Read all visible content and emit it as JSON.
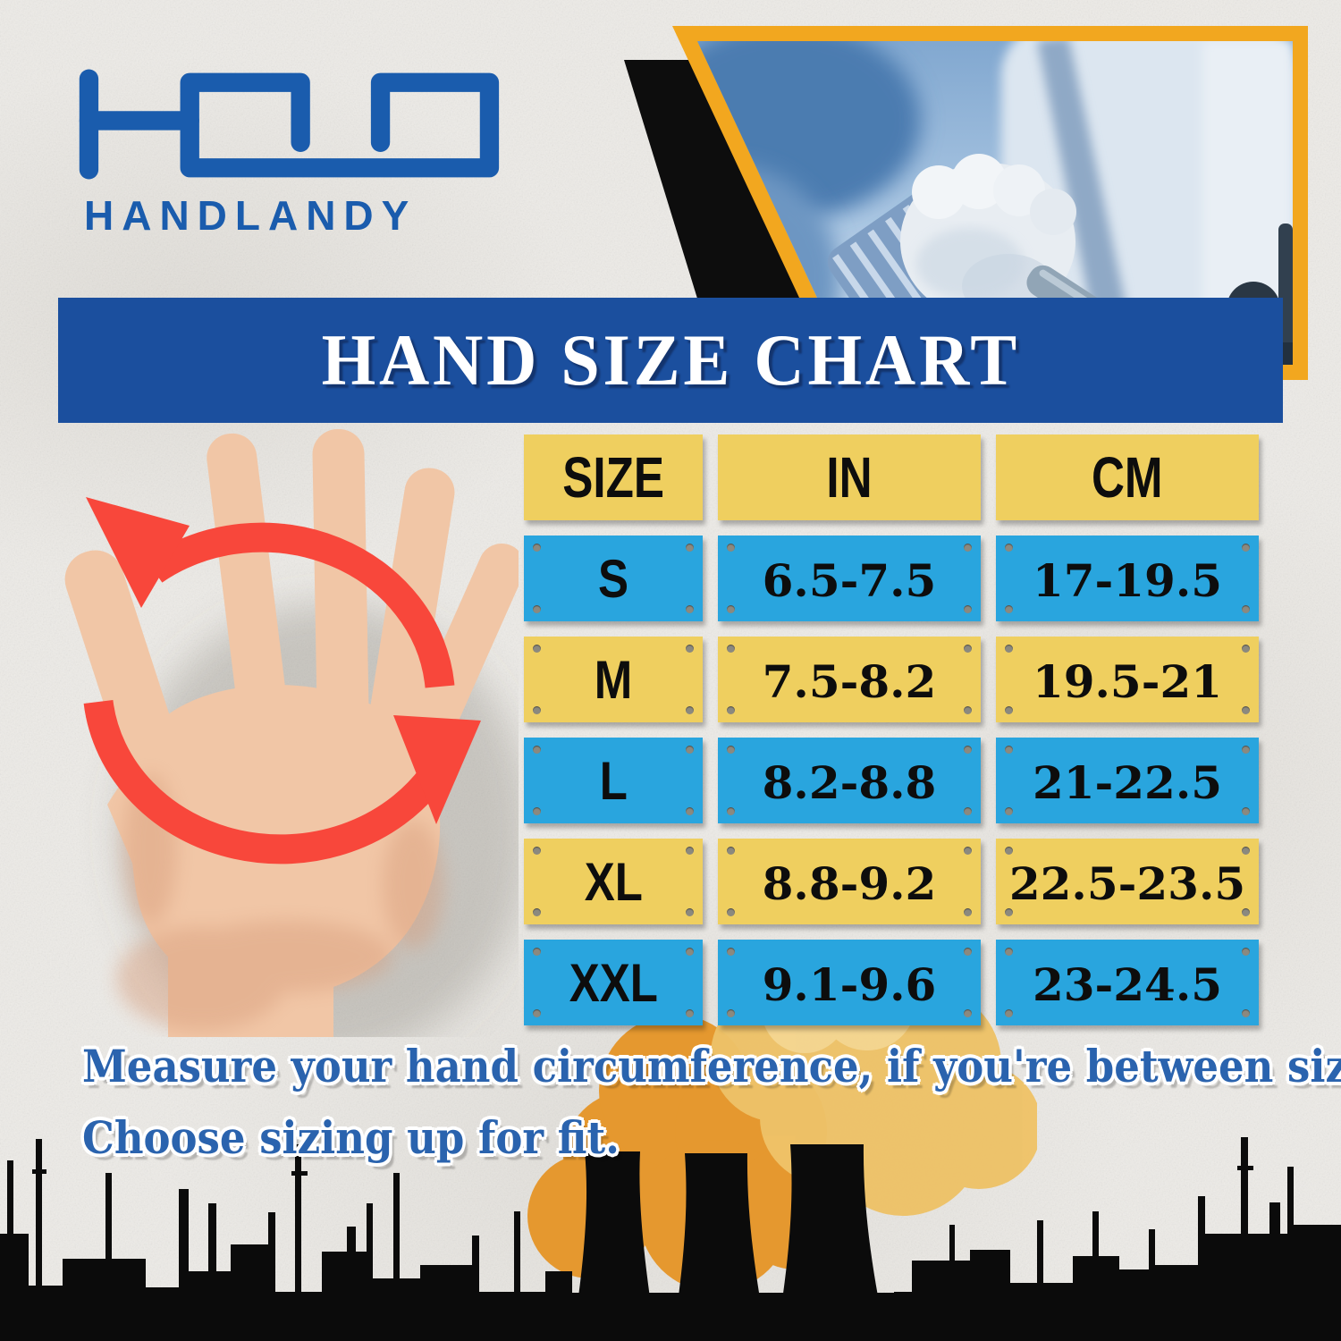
{
  "brand": {
    "name": "HANDLANDY"
  },
  "banner": {
    "title": "HAND SIZE CHART"
  },
  "size_table": {
    "headers": [
      "SIZE",
      "IN",
      "CM"
    ],
    "rows": [
      {
        "size": "S",
        "in": "6.5-7.5",
        "cm": "17-19.5"
      },
      {
        "size": "M",
        "in": "7.5-8.2",
        "cm": "19.5-21"
      },
      {
        "size": "L",
        "in": "8.2-8.8",
        "cm": "21-22.5"
      },
      {
        "size": "XL",
        "in": "8.8-9.2",
        "cm": "22.5-23.5"
      },
      {
        "size": "XXL",
        "in": "9.1-9.6",
        "cm": "23-24.5"
      }
    ]
  },
  "note": {
    "line1": "Measure your hand circumference, if you're between size,",
    "line2": "Choose sizing up for fit."
  },
  "colors": {
    "brand_blue": "#1a5cad",
    "banner_blue": "#1b4f9e",
    "cell_yellow": "#efcf5f",
    "cell_blue": "#29a5de",
    "accent_orange": "#f2a71f",
    "arrow_red": "#f8473b",
    "text_blue": "#2a63ae",
    "silhouette_black": "#0b0b0b",
    "smoke_orange": "#e5982f",
    "smoke_light": "#eec268"
  },
  "chart_data": {
    "type": "table",
    "title": "HAND SIZE CHART",
    "columns": [
      "SIZE",
      "IN",
      "CM"
    ],
    "rows": [
      [
        "S",
        "6.5-7.5",
        "17-19.5"
      ],
      [
        "M",
        "7.5-8.2",
        "19.5-21"
      ],
      [
        "L",
        "8.2-8.8",
        "21-22.5"
      ],
      [
        "XL",
        "8.8-9.2",
        "22.5-23.5"
      ],
      [
        "XXL",
        "9.1-9.6",
        "23-24.5"
      ]
    ]
  }
}
